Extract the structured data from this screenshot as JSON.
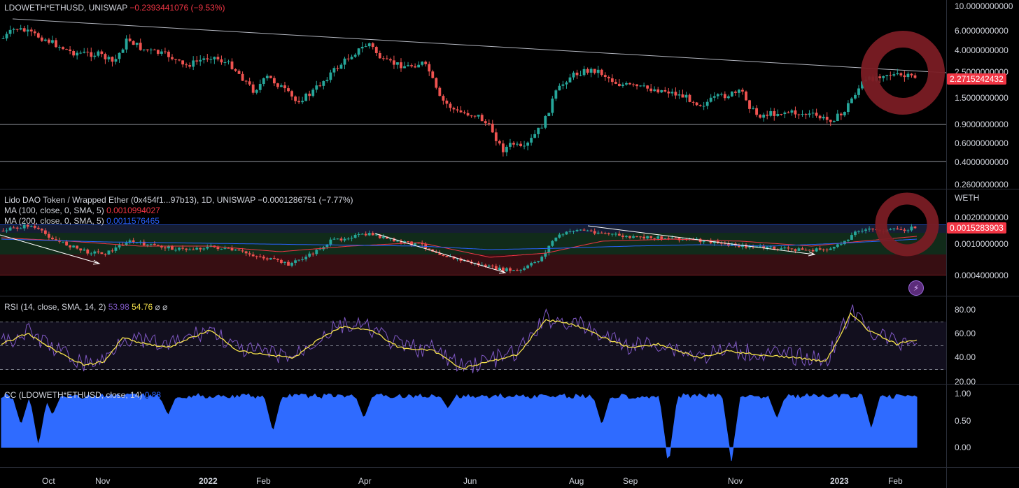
{
  "pane_main": {
    "symbol": "LDOWETH*ETHUSD, UNISWAP",
    "change": "−0.2393441076 (−9.53%)",
    "last_price": "2.2715242432",
    "axis": [
      "10.0000000000",
      "6.0000000000",
      "4.0000000000",
      "2.5000000000",
      "1.5000000000",
      "0.9000000000",
      "0.6000000000",
      "0.4000000000",
      "0.2600000000"
    ]
  },
  "pane_pair": {
    "symbol": "Lido DAO Token / Wrapped Ether (0x454f1...97b13), 1D, UNISWAP",
    "change": "−0.0001286751 (−7.77%)",
    "ma100_label": "MA (100, close, 0, SMA, 5)",
    "ma100_value": "0.0010994027",
    "ma200_label": "MA (200, close, 0, SMA, 5)",
    "ma200_value": "0.0011576465",
    "unit": "WETH",
    "last_price": "0.0015283903",
    "axis": [
      "0.0020000000",
      "0.0010000000",
      "0.0004000000"
    ]
  },
  "pane_rsi": {
    "label": "RSI (14, close, SMA, 14, 2)",
    "rsi_value": "53.98",
    "sma_value": "54.76",
    "extra1": "⌀",
    "extra2": "⌀",
    "axis": [
      "80.00",
      "60.00",
      "40.00",
      "20.00"
    ]
  },
  "pane_cc": {
    "label": "CC (LDOWETH*ETHUSD, close, 14)",
    "value": "0.88",
    "axis": [
      "1.00",
      "0.50",
      "0.00"
    ]
  },
  "time_axis": [
    "Oct",
    "Nov",
    "2022",
    "Feb",
    "Apr",
    "Jun",
    "Aug",
    "Sep",
    "Nov",
    "2023",
    "Feb"
  ],
  "colors": {
    "up": "#26a69a",
    "down": "#ef5350",
    "ma100": "#f23645",
    "ma200": "#2962ff",
    "rsi": "#7e57c2",
    "rsi_sma": "#f5e14b",
    "cc": "#2962ff",
    "ring": "#7a1c24"
  },
  "icons": {
    "alert": "lightning-icon"
  }
}
